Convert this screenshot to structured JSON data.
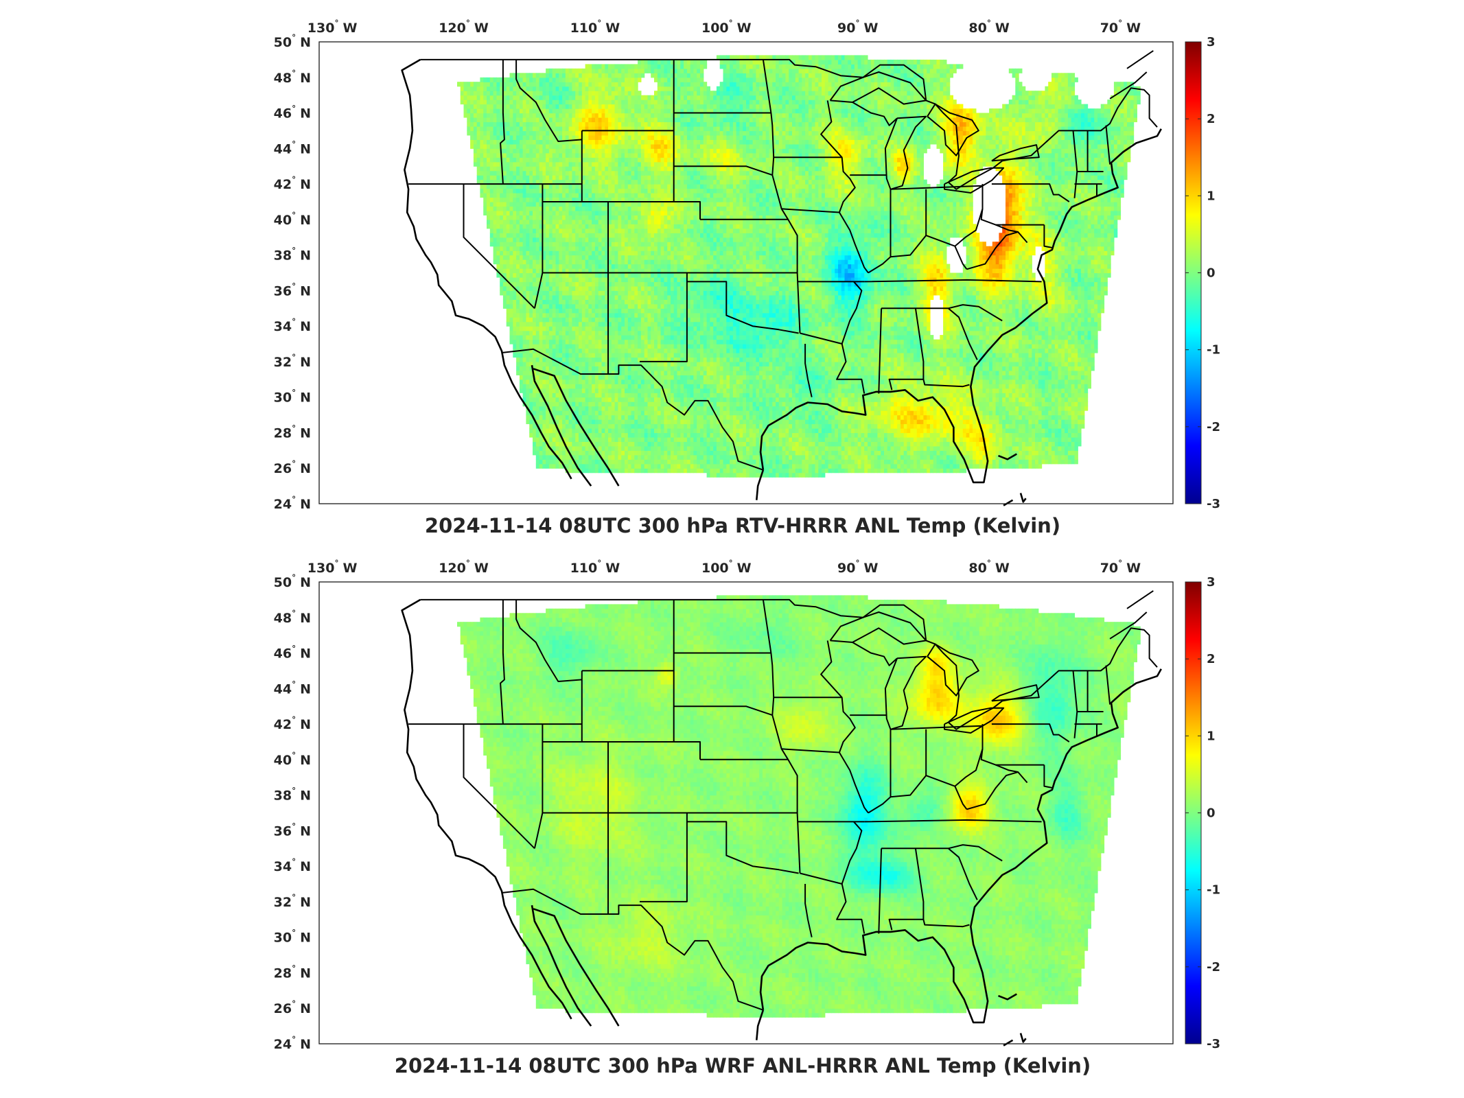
{
  "figure": {
    "colormap": "jet",
    "panels": [
      {
        "id": "top",
        "title": "2024-11-14 08UTC 300 hPa RTV-HRRR ANL Temp (Kelvin)",
        "lon_ticks": [
          {
            "value": -130,
            "label": "130",
            "hemi": "W"
          },
          {
            "value": -120,
            "label": "120",
            "hemi": "W"
          },
          {
            "value": -110,
            "label": "110",
            "hemi": "W"
          },
          {
            "value": -100,
            "label": "100",
            "hemi": "W"
          },
          {
            "value": -90,
            "label": "90",
            "hemi": "W"
          },
          {
            "value": -80,
            "label": "80",
            "hemi": "W"
          },
          {
            "value": -70,
            "label": "70",
            "hemi": "W"
          }
        ],
        "lat_ticks": [
          {
            "value": 50,
            "label": "50",
            "hemi": "N"
          },
          {
            "value": 48,
            "label": "48",
            "hemi": "N"
          },
          {
            "value": 46,
            "label": "46",
            "hemi": "N"
          },
          {
            "value": 44,
            "label": "44",
            "hemi": "N"
          },
          {
            "value": 42,
            "label": "42",
            "hemi": "N"
          },
          {
            "value": 40,
            "label": "40",
            "hemi": "N"
          },
          {
            "value": 38,
            "label": "38",
            "hemi": "N"
          },
          {
            "value": 36,
            "label": "36",
            "hemi": "N"
          },
          {
            "value": 34,
            "label": "34",
            "hemi": "N"
          },
          {
            "value": 32,
            "label": "32",
            "hemi": "N"
          },
          {
            "value": 30,
            "label": "30",
            "hemi": "N"
          },
          {
            "value": 28,
            "label": "28",
            "hemi": "N"
          },
          {
            "value": 26,
            "label": "26",
            "hemi": "N"
          },
          {
            "value": 24,
            "label": "24",
            "hemi": "N"
          }
        ],
        "colorbar": {
          "min": -3,
          "max": 3,
          "ticks": [
            "3",
            "2",
            "1",
            "0",
            "-1",
            "-2",
            "-3"
          ]
        },
        "field": {
          "base": 0.05,
          "blobs": [
            [
              -79.0,
              41.0,
              1.6,
              2.3,
              1.3
            ],
            [
              -79.5,
              38.3,
              1.6,
              2.2,
              1.3
            ],
            [
              -82.0,
              45.0,
              1.5,
              2.0,
              1.1
            ],
            [
              -84.0,
              36.0,
              1.2,
              2.5,
              0.9
            ],
            [
              -76.0,
              37.5,
              1.5,
              2.5,
              0.5
            ],
            [
              -86.5,
              43.0,
              0.9,
              0.9,
              0.9
            ],
            [
              -91.0,
              43.5,
              1.5,
              1.5,
              0.7
            ],
            [
              -110.0,
              45.5,
              2.5,
              2.0,
              0.9
            ],
            [
              -105.0,
              44.0,
              1.5,
              1.5,
              0.7
            ],
            [
              -105.5,
              40.0,
              1.2,
              1.0,
              0.8
            ],
            [
              -100.0,
              44.0,
              2.0,
              1.5,
              0.5
            ],
            [
              -85.0,
              29.0,
              4.0,
              1.6,
              0.8
            ],
            [
              -80.5,
              27.5,
              1.5,
              1.5,
              0.6
            ],
            [
              -76.0,
              45.5,
              2.0,
              2.0,
              0.4
            ],
            [
              -90.5,
              37.0,
              1.6,
              2.0,
              -1.1
            ],
            [
              -97.0,
              34.0,
              2.5,
              1.5,
              -0.6
            ],
            [
              -101.0,
              35.0,
              2.5,
              2.0,
              -0.4
            ],
            [
              -100.0,
              46.0,
              2.5,
              2.0,
              -0.4
            ],
            [
              -112.0,
              46.5,
              2.0,
              1.5,
              -0.4
            ],
            [
              -73.5,
              45.0,
              1.5,
              1.5,
              -0.5
            ],
            [
              -94.0,
              30.5,
              3.0,
              1.3,
              -0.3
            ]
          ],
          "noise": 0.45,
          "gaps": [
            [
              -80.0,
              40.8,
              1.3,
              2.2
            ],
            [
              -82.5,
              38.0,
              0.8,
              1.0
            ],
            [
              -84.2,
              43.0,
              0.8,
              1.2
            ],
            [
              -84.0,
              34.5,
              0.6,
              1.3
            ],
            [
              -106.0,
              47.6,
              0.7,
              0.6
            ],
            [
              -101.0,
              48.2,
              0.7,
              0.9
            ],
            [
              -80.5,
              47.5,
              2.5,
              1.4
            ],
            [
              -76.5,
              48.0,
              1.2,
              0.8
            ],
            [
              -72.0,
              47.3,
              1.5,
              1.0
            ],
            [
              -76.2,
              37.5,
              0.5,
              1.0
            ]
          ]
        }
      },
      {
        "id": "bottom",
        "title": "2024-11-14 08UTC 300 hPa WRF ANL-HRRR ANL Temp (Kelvin)",
        "lon_ticks": [
          {
            "value": -130,
            "label": "130",
            "hemi": "W"
          },
          {
            "value": -120,
            "label": "120",
            "hemi": "W"
          },
          {
            "value": -110,
            "label": "110",
            "hemi": "W"
          },
          {
            "value": -100,
            "label": "100",
            "hemi": "W"
          },
          {
            "value": -90,
            "label": "90",
            "hemi": "W"
          },
          {
            "value": -80,
            "label": "80",
            "hemi": "W"
          },
          {
            "value": -70,
            "label": "70",
            "hemi": "W"
          }
        ],
        "lat_ticks": [
          {
            "value": 50,
            "label": "50",
            "hemi": "N"
          },
          {
            "value": 48,
            "label": "48",
            "hemi": "N"
          },
          {
            "value": 46,
            "label": "46",
            "hemi": "N"
          },
          {
            "value": 44,
            "label": "44",
            "hemi": "N"
          },
          {
            "value": 42,
            "label": "42",
            "hemi": "N"
          },
          {
            "value": 40,
            "label": "40",
            "hemi": "N"
          },
          {
            "value": 38,
            "label": "38",
            "hemi": "N"
          },
          {
            "value": 36,
            "label": "36",
            "hemi": "N"
          },
          {
            "value": 34,
            "label": "34",
            "hemi": "N"
          },
          {
            "value": 32,
            "label": "32",
            "hemi": "N"
          },
          {
            "value": 30,
            "label": "30",
            "hemi": "N"
          },
          {
            "value": 28,
            "label": "28",
            "hemi": "N"
          },
          {
            "value": 26,
            "label": "26",
            "hemi": "N"
          },
          {
            "value": 24,
            "label": "24",
            "hemi": "N"
          }
        ],
        "colorbar": {
          "min": -3,
          "max": 3,
          "ticks": [
            "3",
            "2",
            "1",
            "0",
            "-1",
            "-2",
            "-3"
          ]
        },
        "field": {
          "base": 0.1,
          "blobs": [
            [
              -84.0,
              43.5,
              2.0,
              1.5,
              0.9
            ],
            [
              -79.5,
              42.3,
              2.0,
              1.5,
              1.0
            ],
            [
              -81.5,
              37.3,
              1.5,
              1.2,
              1.0
            ],
            [
              -84.0,
              45.5,
              1.2,
              1.0,
              0.6
            ],
            [
              -104.5,
              44.8,
              0.8,
              0.7,
              0.6
            ],
            [
              -94.0,
              42.0,
              2.0,
              1.5,
              0.4
            ],
            [
              -110.0,
              37.5,
              3.0,
              3.0,
              0.35
            ],
            [
              -106.0,
              30.0,
              3.0,
              2.0,
              0.3
            ],
            [
              -89.5,
              37.0,
              1.6,
              2.5,
              -0.9
            ],
            [
              -88.0,
              33.5,
              2.5,
              1.0,
              -0.7
            ],
            [
              -85.0,
              37.0,
              1.5,
              1.0,
              -0.5
            ],
            [
              -112.0,
              46.0,
              2.0,
              1.5,
              -0.4
            ],
            [
              -75.0,
              43.5,
              2.0,
              3.0,
              -0.5
            ],
            [
              -74.0,
              37.0,
              1.5,
              2.0,
              -0.4
            ],
            [
              -97.0,
              47.0,
              2.5,
              1.5,
              -0.2
            ]
          ],
          "noise": 0.22,
          "gaps": []
        }
      }
    ]
  }
}
